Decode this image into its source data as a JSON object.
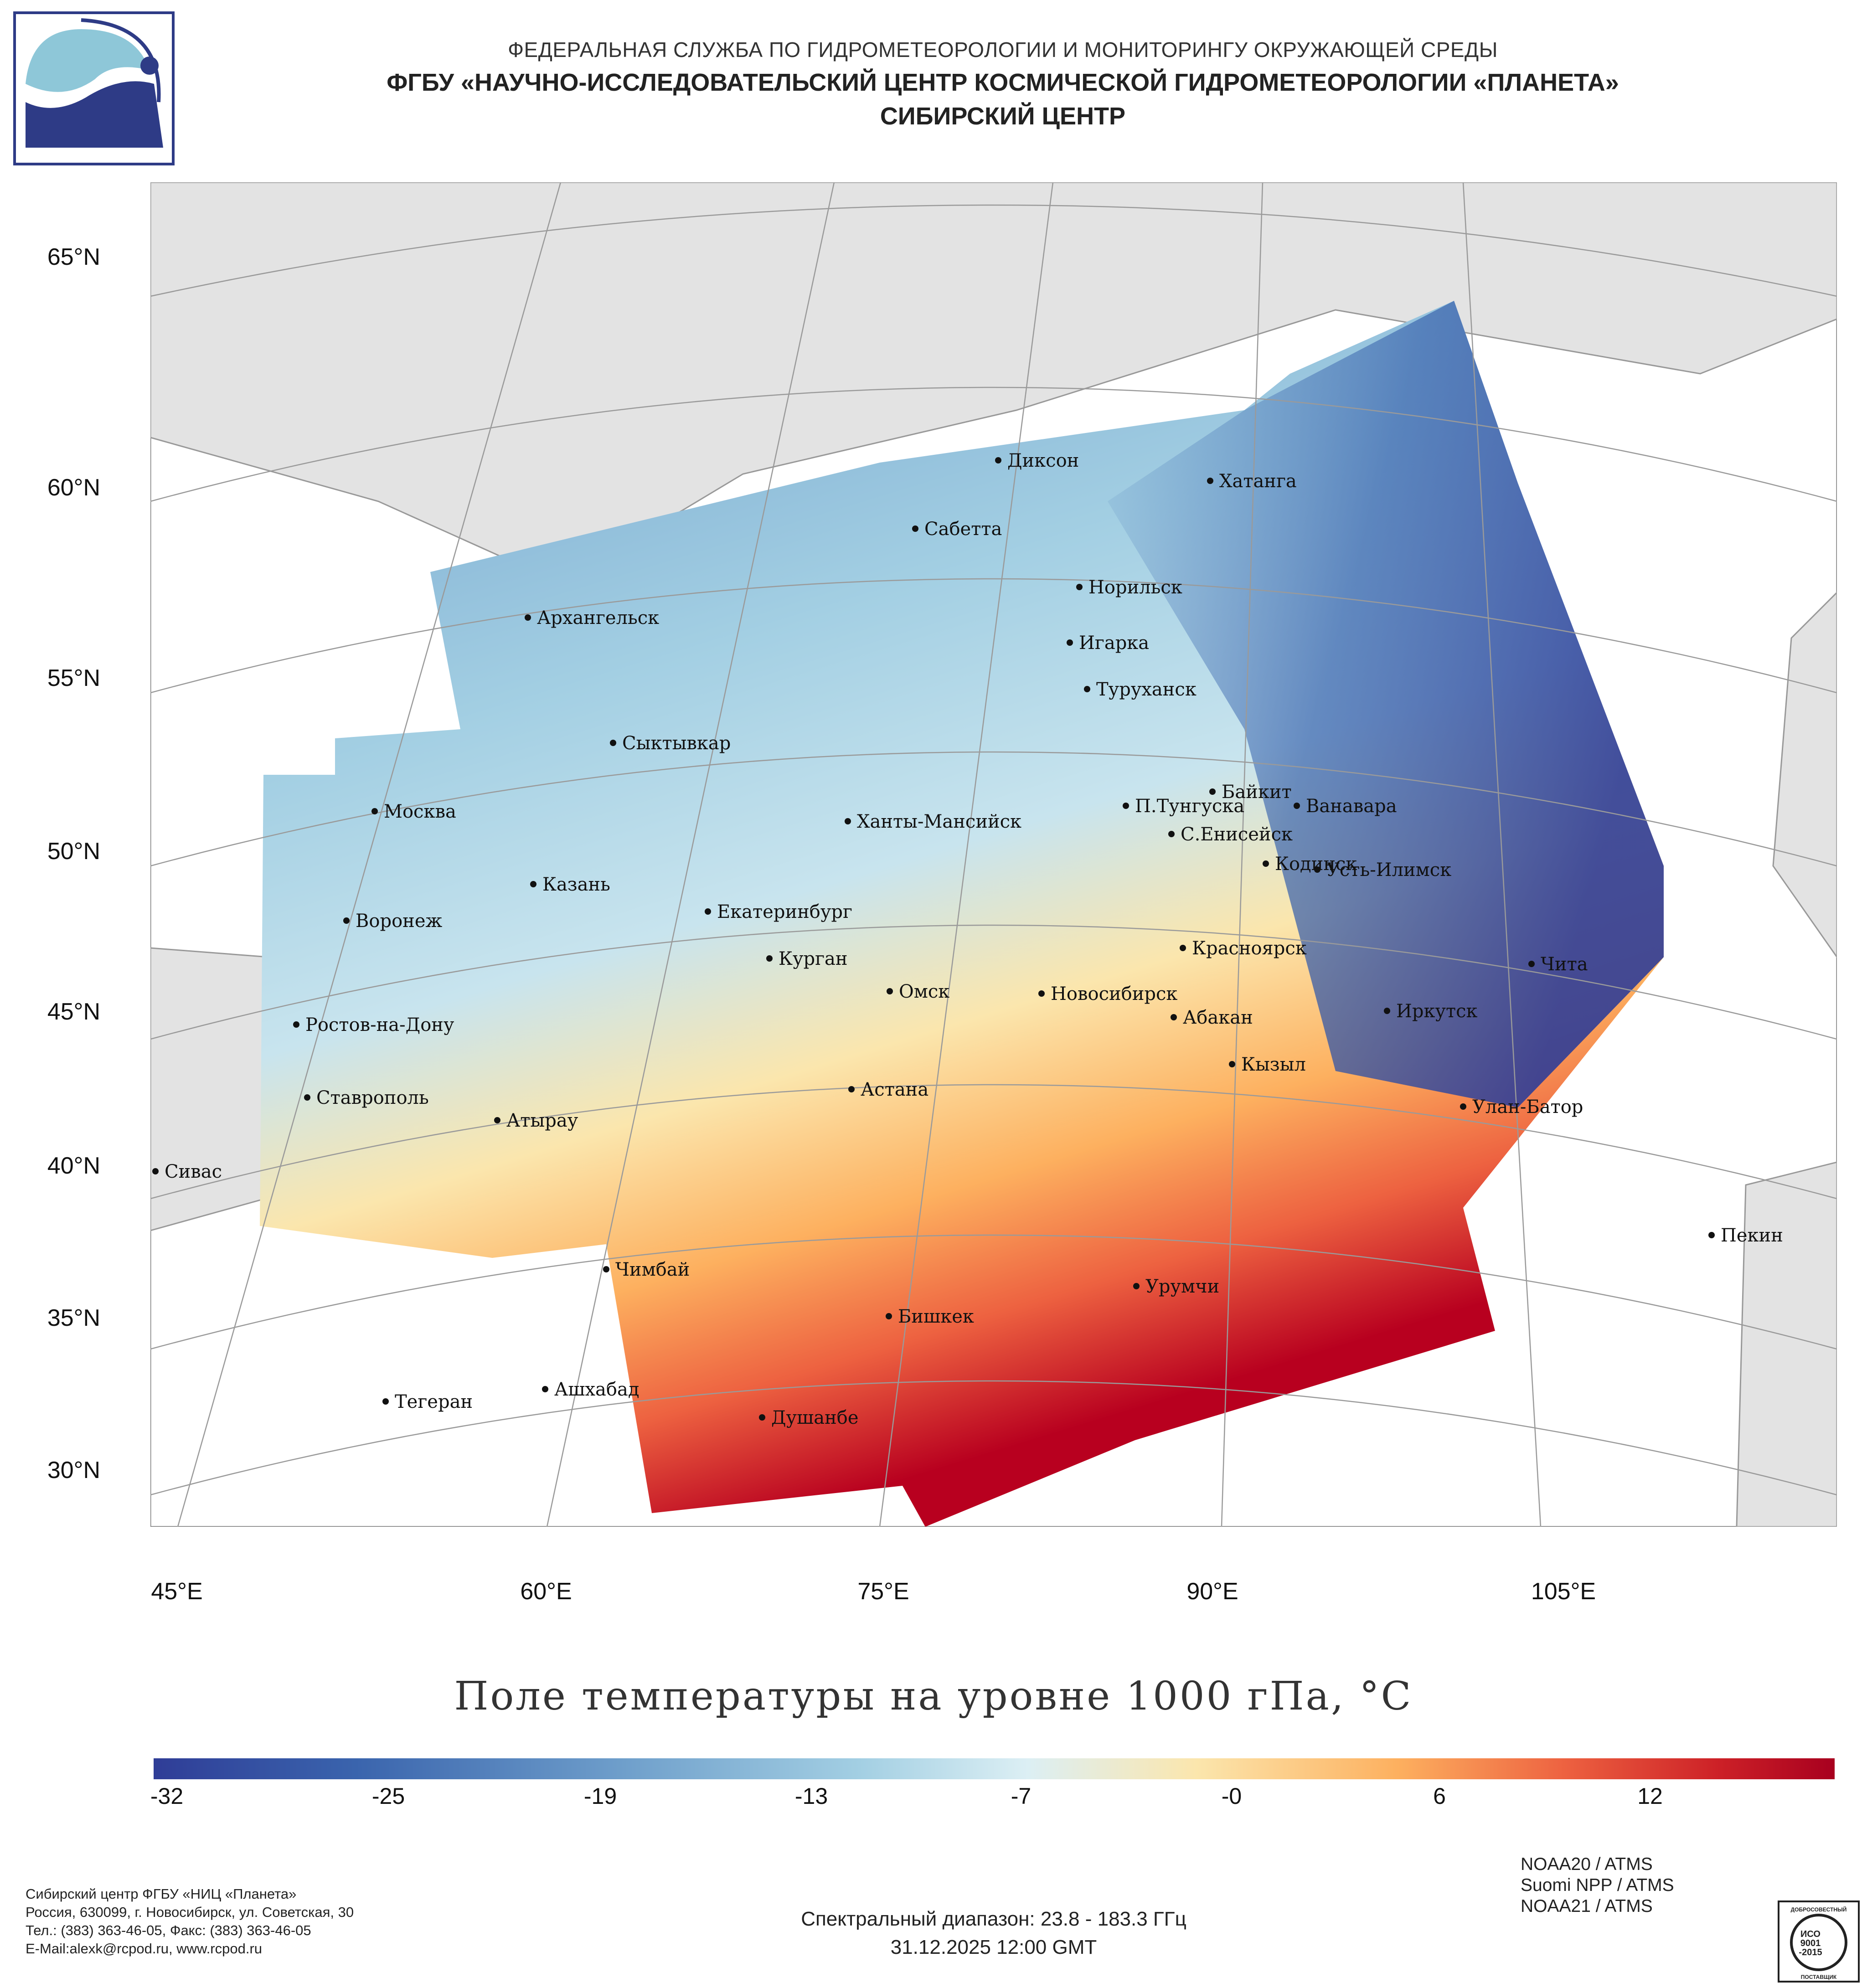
{
  "header": {
    "line1": "ФЕДЕРАЛЬНАЯ СЛУЖБА ПО ГИДРОМЕТЕОРОЛОГИИ И МОНИТОРИНГУ ОКРУЖАЮЩЕЙ СРЕДЫ",
    "line2": "ФГБУ «НАУЧНО-ИССЛЕДОВАТЕЛЬСКИЙ ЦЕНТР КОСМИЧЕСКОЙ ГИДРОМЕТЕОРОЛОГИИ «ПЛАНЕТА»",
    "line3": "СИБИРСКИЙ ЦЕНТР"
  },
  "map": {
    "latitude_labels": [
      "65°N",
      "60°N",
      "55°N",
      "50°N",
      "45°N",
      "40°N",
      "35°N",
      "30°N"
    ],
    "longitude_labels": [
      "45°E",
      "60°E",
      "75°E",
      "90°E",
      "105°E"
    ],
    "cities": [
      {
        "name": "Диксон"
      },
      {
        "name": "Хатанга"
      },
      {
        "name": "Сабетта"
      },
      {
        "name": "Норильск"
      },
      {
        "name": "Архангельск"
      },
      {
        "name": "Игарка"
      },
      {
        "name": "Туруханск"
      },
      {
        "name": "Сыктывкар"
      },
      {
        "name": "Байкит"
      },
      {
        "name": "Москва"
      },
      {
        "name": "П.Тунгуска"
      },
      {
        "name": "Ванавара"
      },
      {
        "name": "Ханты-Мансийск"
      },
      {
        "name": "С.Енисейск"
      },
      {
        "name": "Кодинск"
      },
      {
        "name": "Усть-Илимск"
      },
      {
        "name": "Казань"
      },
      {
        "name": "Воронеж"
      },
      {
        "name": "Екатеринбург"
      },
      {
        "name": "Красноярск"
      },
      {
        "name": "Курган"
      },
      {
        "name": "Чита"
      },
      {
        "name": "Омск"
      },
      {
        "name": "Новосибирск"
      },
      {
        "name": "Иркутск"
      },
      {
        "name": "Ростов-на-Дону"
      },
      {
        "name": "Абакан"
      },
      {
        "name": "Кызыл"
      },
      {
        "name": "Астана"
      },
      {
        "name": "Ставрополь"
      },
      {
        "name": "Улан-Батор"
      },
      {
        "name": "Атырау"
      },
      {
        "name": "Сивас"
      },
      {
        "name": "Пекин"
      },
      {
        "name": "Чимбай"
      },
      {
        "name": "Урумчи"
      },
      {
        "name": "Бишкек"
      },
      {
        "name": "Ашхабад"
      },
      {
        "name": "Тегеран"
      },
      {
        "name": "Душанбе"
      }
    ],
    "title": "Поле температуры на уровне 1000 гПа, °С"
  },
  "colorbar": {
    "ticks": [
      "-32",
      "-25",
      "-19",
      "-13",
      "-7",
      "-0",
      "6",
      "12"
    ],
    "min": -34,
    "max": 18,
    "colors": [
      "#2f3d97",
      "#3a64ad",
      "#6f9fcb",
      "#a3cfe3",
      "#dceff4",
      "#fbe6ad",
      "#fdb05f",
      "#ed6140",
      "#cd2127",
      "#a8001f"
    ]
  },
  "footer": {
    "left_line1": "Сибирский центр ФГБУ «НИЦ «Планета»",
    "left_line2": "Россия, 630099, г. Новосибирск, ул. Советская, 30",
    "left_line3": "Тел.: (383) 363-46-05, Факс: (383) 363-46-05",
    "left_line4": "E-Mail:alexk@rcpod.ru, www.rcpod.ru",
    "spectral": "Спектральный диапазон: 23.8 - 183.3 ГГц",
    "datetime": "31.12.2025 12:00 GMT",
    "satellites": [
      "NOAA20 / ATMS",
      "Suomi NPP / ATMS",
      "NOAA21 / ATMS"
    ],
    "iso_top": "ДОБРОСОВЕСТНЫЙ",
    "iso_mid1": "ИСО",
    "iso_mid2": "9001",
    "iso_mid3": "-2015",
    "iso_bottom": "ПОСТАВЩИК"
  }
}
